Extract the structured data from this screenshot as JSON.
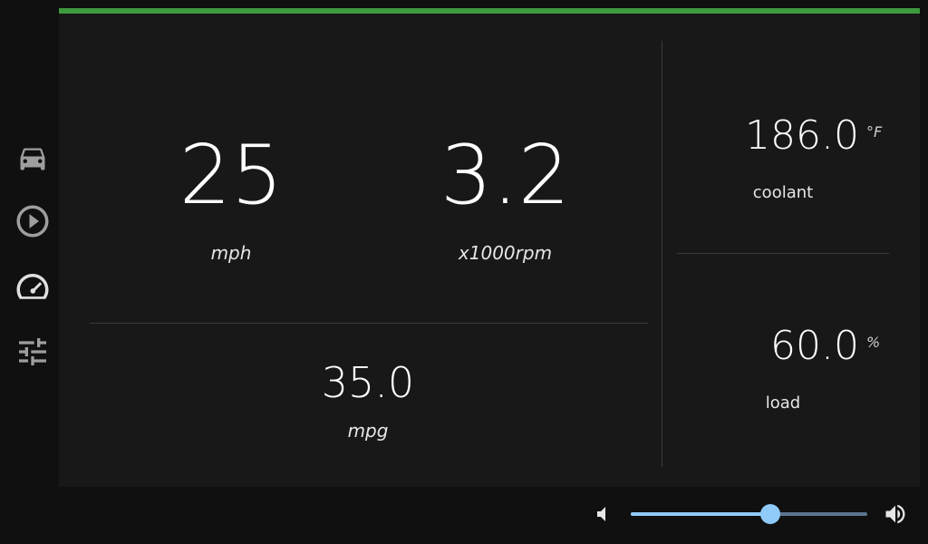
{
  "colors": {
    "accent": "#3f9a3f",
    "slider_fill": "#90caf9",
    "slider_track": "#5c7690",
    "icon": "#9e9e9e"
  },
  "sidebar": {
    "items": [
      {
        "icon": "car-icon",
        "active": false
      },
      {
        "icon": "play-circle-icon",
        "active": false
      },
      {
        "icon": "speedometer-icon",
        "active": true
      },
      {
        "icon": "tune-sliders-icon",
        "active": false
      }
    ]
  },
  "gauges": {
    "speed": {
      "value": "25",
      "unit": "mph"
    },
    "rpm": {
      "value": "3.2",
      "unit": "x1000rpm"
    },
    "economy": {
      "value": "35.0",
      "unit": "mpg"
    },
    "coolant": {
      "value": "186.0",
      "unit": "°F",
      "label": "coolant"
    },
    "load": {
      "value": "60.0",
      "unit": "%",
      "label": "load"
    }
  },
  "volume": {
    "level": 0.59,
    "mute_icon": "volume-low-icon",
    "max_icon": "volume-high-icon"
  }
}
